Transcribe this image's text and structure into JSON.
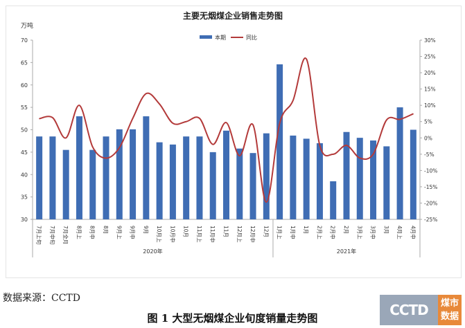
{
  "chart_data": {
    "type": "bar+line",
    "title": "主要无烟煤企业销售走势图",
    "y_left_unit": "万吨",
    "y_left_lim": [
      30,
      70
    ],
    "y_left_ticks": [
      "30",
      "35",
      "40",
      "45",
      "50",
      "55",
      "60",
      "65",
      "70"
    ],
    "y_right_lim": [
      -25,
      30
    ],
    "y_right_ticks": [
      "-25%",
      "-20%",
      "-15%",
      "-10%",
      "-5%",
      "0%",
      "5%",
      "10%",
      "15%",
      "20%",
      "25%",
      "30%"
    ],
    "grid": false,
    "legend_position": "top-center",
    "categories": [
      "7月上旬",
      "7月中旬",
      "7月全月",
      "8月上",
      "8月中",
      "8月",
      "9月上",
      "9月中",
      "9月",
      "10月上",
      "10月中",
      "10月",
      "11月上",
      "11月中",
      "11月",
      "12月上",
      "12月中",
      "12月",
      "1月上",
      "1月中",
      "1月",
      "2月上",
      "2月中",
      "2月",
      "3月上",
      "3月中",
      "3月",
      "4月上",
      "4月中"
    ],
    "groups": [
      {
        "label": "2020年",
        "count": 18
      },
      {
        "label": "2021年",
        "count": 11
      }
    ],
    "series": [
      {
        "name": "本期",
        "type": "bar",
        "axis": "left",
        "color": "#3f6db4",
        "values": [
          48.5,
          48.5,
          45.5,
          53,
          45.5,
          48.5,
          50.1,
          50.1,
          53,
          47.2,
          46.7,
          48.5,
          48.5,
          45,
          49.8,
          45.8,
          44.8,
          49.2,
          64.6,
          48.7,
          48,
          47,
          38.5,
          49.5,
          48.2,
          47.6,
          46.3,
          55,
          50
        ]
      },
      {
        "name": "同比",
        "type": "line",
        "axis": "right",
        "color": "#b33a3a",
        "values": [
          5.9,
          6.2,
          0,
          10,
          -2.8,
          -6.2,
          -3,
          6,
          13.6,
          10.4,
          4.5,
          5,
          6,
          -2,
          4.7,
          -5.5,
          4,
          -19.7,
          4.5,
          11.5,
          24.2,
          -2.3,
          -5,
          -2.3,
          -6.2,
          -5,
          5.5,
          5.7,
          7.4
        ]
      }
    ]
  },
  "source": "数据来源：CCTD",
  "caption": "图 1 大型无烟煤企业旬度销量走势图",
  "logo": {
    "left": "CCTD",
    "right_top": "煤市",
    "right_bottom": "数据"
  }
}
